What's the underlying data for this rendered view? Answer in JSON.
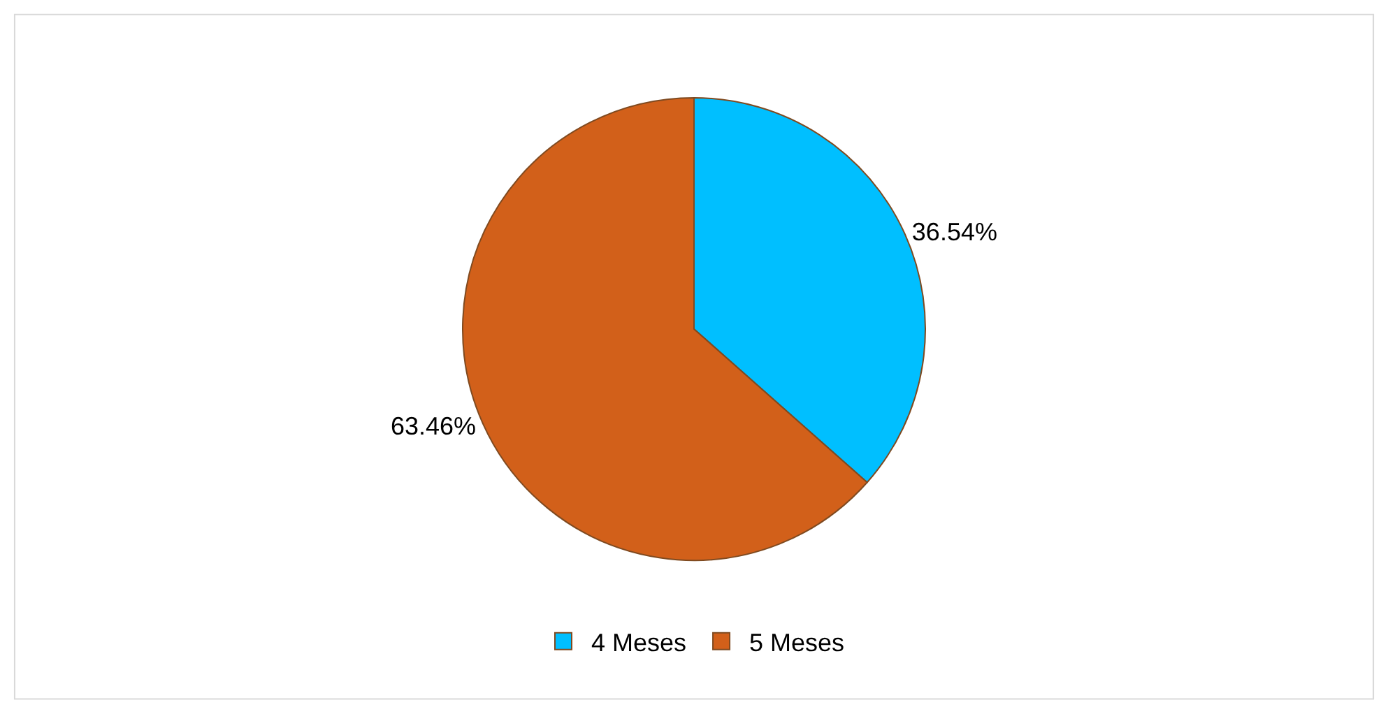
{
  "chart_data": {
    "type": "pie",
    "categories": [
      "4 Meses",
      "5 Meses"
    ],
    "values": [
      36.54,
      63.46
    ],
    "colors": [
      "#00bfff",
      "#d2601a"
    ],
    "value_labels": [
      "36.54%",
      "63.46%"
    ],
    "legend": "bottom"
  }
}
